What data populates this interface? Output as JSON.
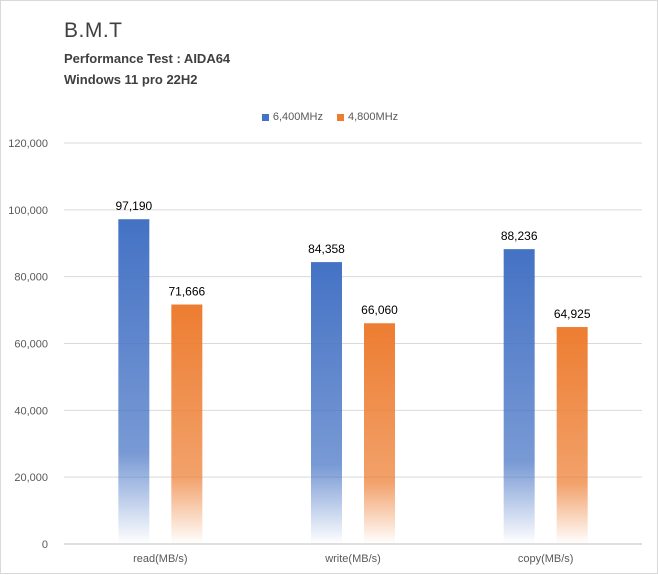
{
  "chart_data": {
    "type": "bar",
    "title": "B.M.T",
    "subtitle_lines": [
      "Performance Test : AIDA64",
      "Windows 11 pro 22H2"
    ],
    "categories": [
      "read(MB/s)",
      "write(MB/s)",
      "copy(MB/s)"
    ],
    "series": [
      {
        "name": "6,400MHz",
        "color": "#4472c4",
        "values": [
          97190,
          84358,
          88236
        ],
        "labels": [
          "97,190",
          "84,358",
          "88,236"
        ]
      },
      {
        "name": "4,800MHz",
        "color": "#ed7d31",
        "values": [
          71666,
          66060,
          64925
        ],
        "labels": [
          "71,666",
          "66,060",
          "64,925"
        ]
      }
    ],
    "ylim": [
      0,
      120000
    ],
    "yticks": [
      0,
      20000,
      40000,
      60000,
      80000,
      100000,
      120000
    ],
    "ytick_labels": [
      "0",
      "20,000",
      "40,000",
      "60,000",
      "80,000",
      "100,000",
      "120,000"
    ],
    "grid": true,
    "legend_position": "top-center"
  }
}
